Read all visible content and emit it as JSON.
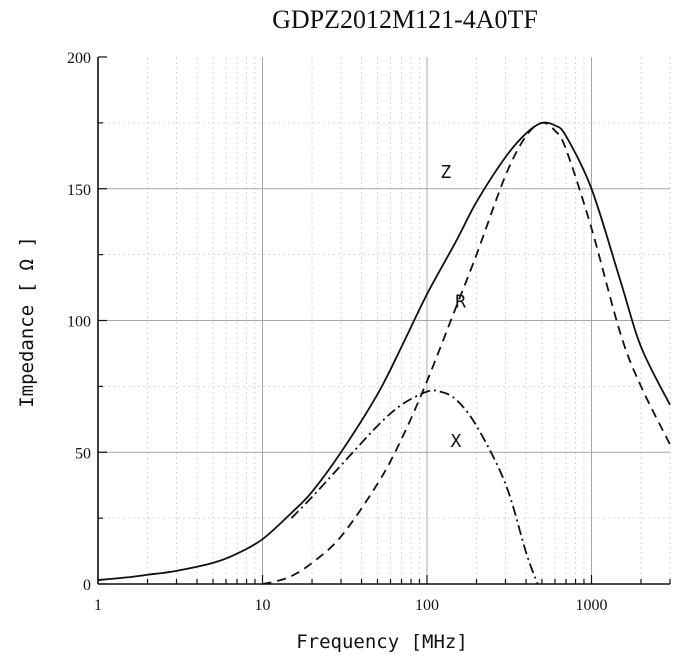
{
  "chart_data": {
    "type": "line",
    "title": "GDPZ2012M121-4A0TF",
    "xlabel": "Frequency [MHz]",
    "ylabel": "Impedance [ Ω ]",
    "x_scale": "log",
    "xlim": [
      1,
      3000
    ],
    "ylim": [
      0,
      200
    ],
    "x_ticks": [
      1,
      10,
      100,
      1000
    ],
    "x_tick_labels": [
      "1",
      "10",
      "100",
      "1000"
    ],
    "y_ticks": [
      0,
      50,
      100,
      150,
      200
    ],
    "y_tick_labels": [
      "0",
      "50",
      "100",
      "150",
      "200"
    ],
    "grid": true,
    "series": [
      {
        "name": "Z",
        "style": "solid",
        "x": [
          1,
          1.5,
          2,
          3,
          5,
          7,
          10,
          15,
          20,
          30,
          50,
          70,
          100,
          150,
          200,
          300,
          400,
          500,
          600,
          700,
          1000,
          1500,
          2000,
          3000
        ],
        "y": [
          1.5,
          2.5,
          3.5,
          5,
          8,
          11.5,
          17,
          27,
          35,
          50,
          72,
          90,
          110,
          130,
          145,
          162,
          171,
          175,
          174,
          170,
          150,
          115,
          90,
          68
        ]
      },
      {
        "name": "R",
        "style": "dashed",
        "x": [
          10,
          12,
          15,
          20,
          30,
          50,
          70,
          100,
          150,
          200,
          300,
          400,
          500,
          600,
          700,
          1000,
          1500,
          2000,
          3000
        ],
        "y": [
          0,
          1,
          3,
          8,
          18,
          38,
          55,
          77,
          105,
          125,
          155,
          170,
          175,
          172,
          165,
          135,
          95,
          75,
          53
        ]
      },
      {
        "name": "X",
        "style": "dash-dot",
        "x": [
          15,
          20,
          30,
          50,
          70,
          100,
          120,
          150,
          200,
          300,
          400,
          470
        ],
        "y": [
          25,
          33,
          45,
          60,
          68,
          73,
          73,
          70,
          60,
          38,
          12,
          0
        ]
      }
    ],
    "annotations": [
      {
        "text": "Z",
        "x": 130,
        "y": 154
      },
      {
        "text": "R",
        "x": 160,
        "y": 105
      },
      {
        "text": "X",
        "x": 150,
        "y": 52
      }
    ]
  }
}
